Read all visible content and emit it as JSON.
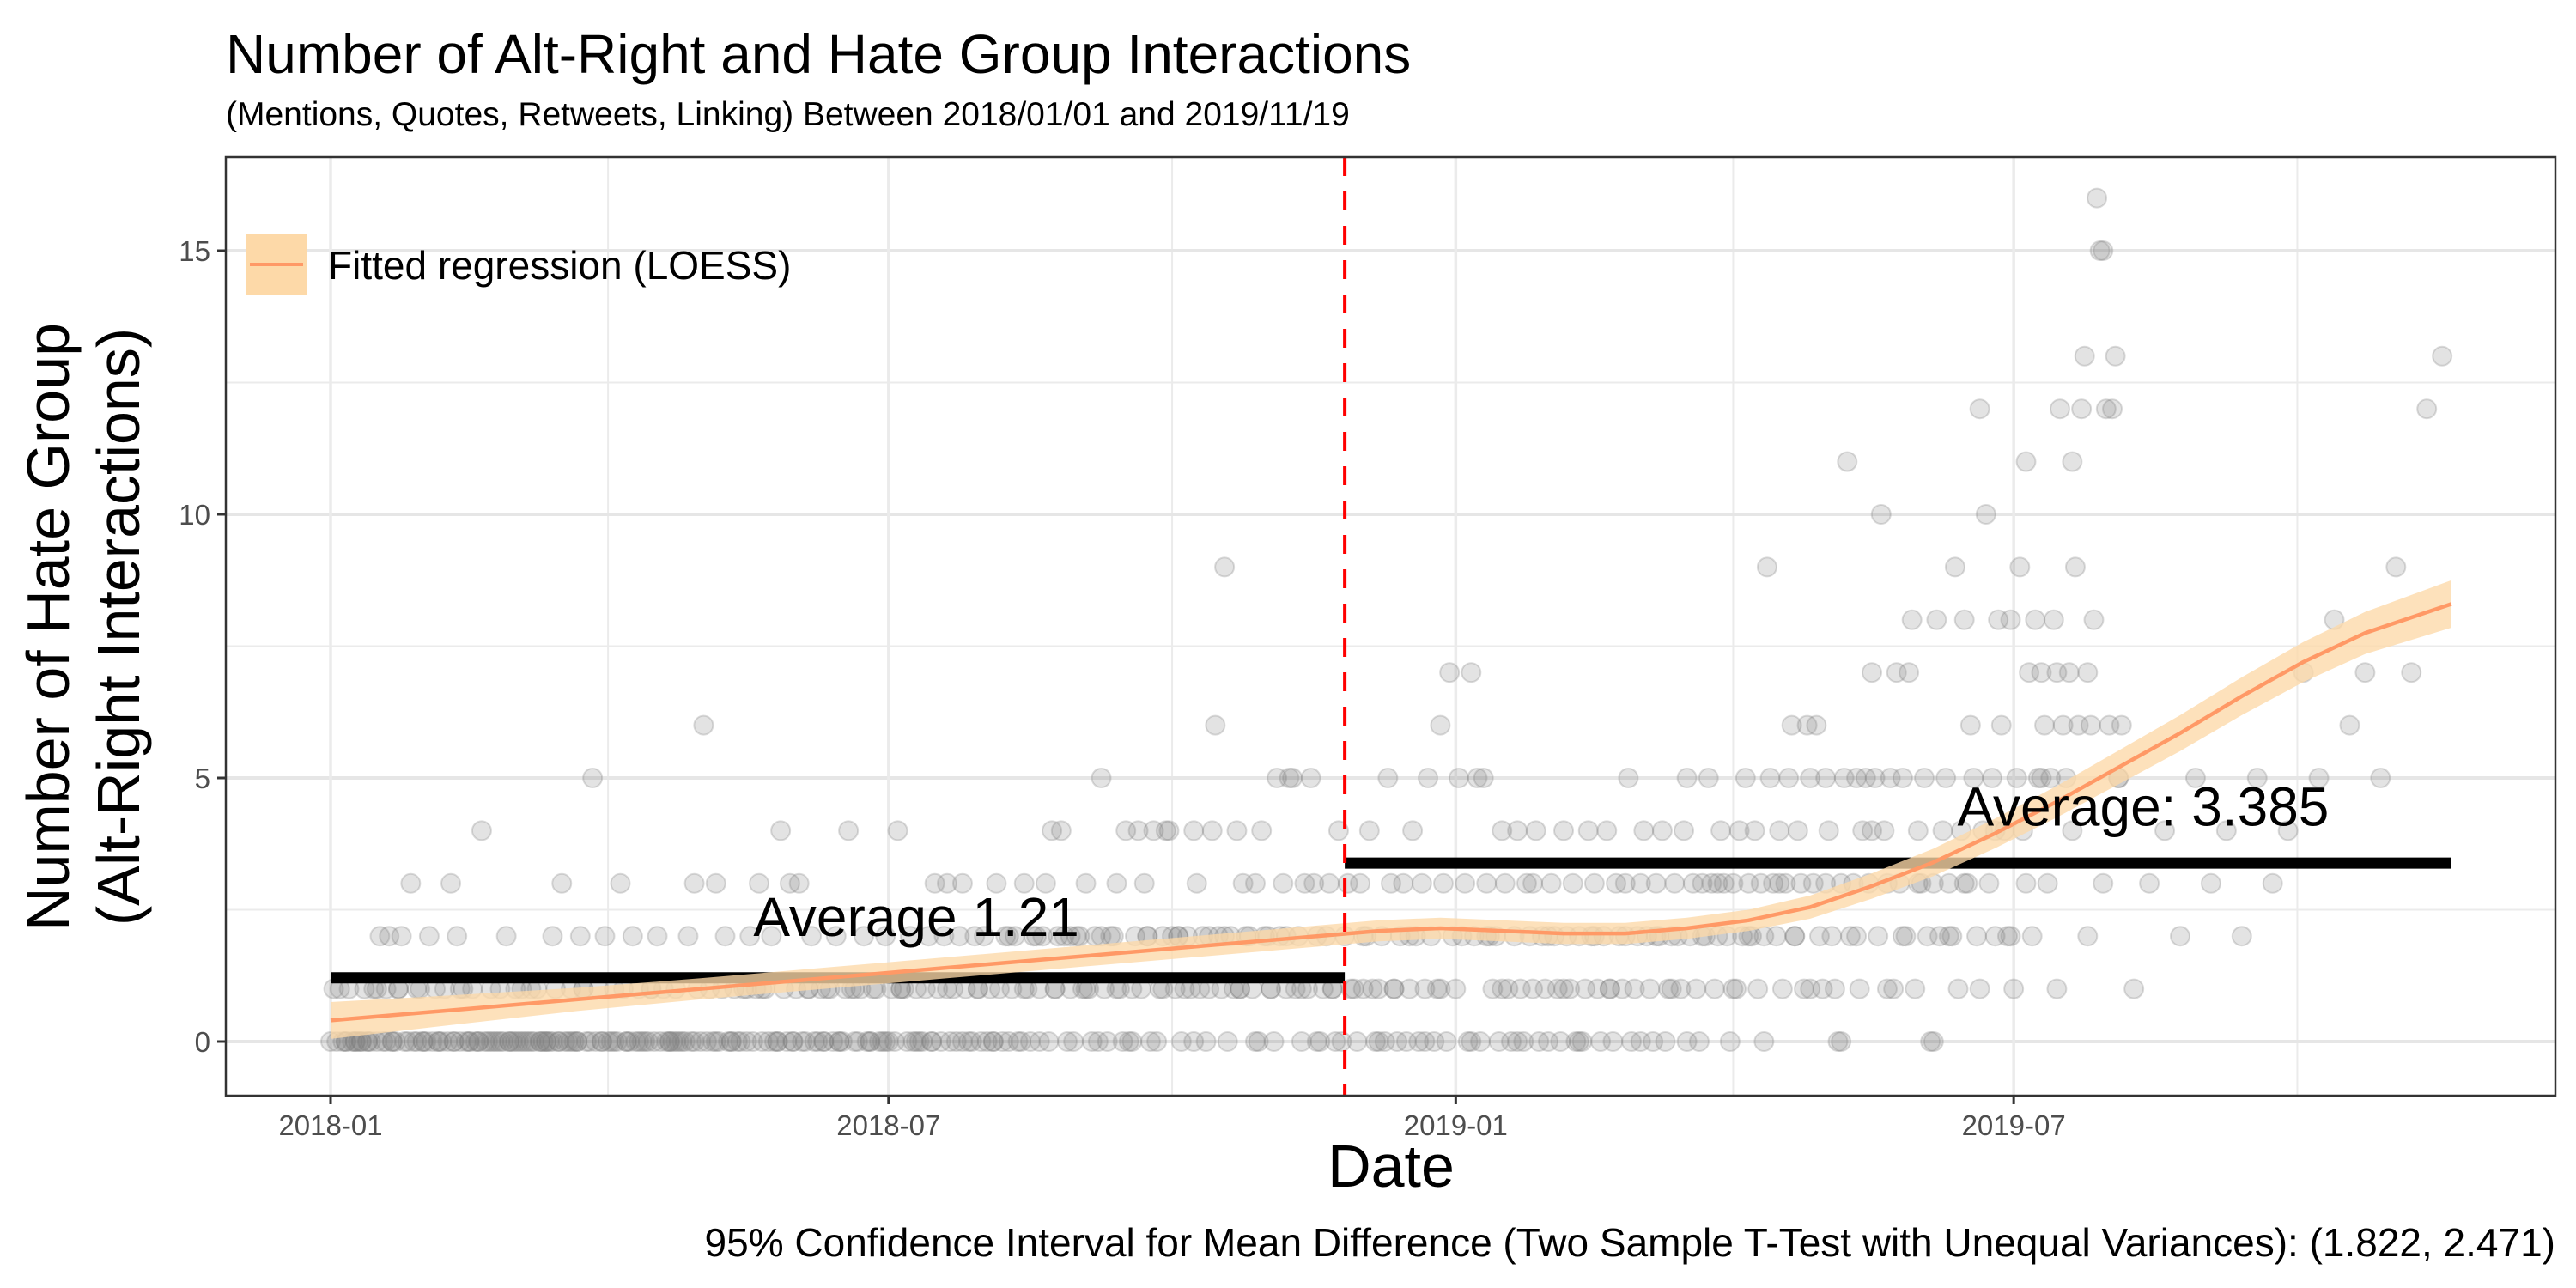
{
  "chart_data": {
    "type": "scatter",
    "title": "Number of Alt-Right and Hate Group Interactions",
    "subtitle": "(Mentions, Quotes, Retweets, Linking) Between 2018/01/01 and 2019/11/19",
    "xlabel": "Date",
    "ylabel_lines": [
      "Number of Hate Group",
      "(Alt-Right Interactions)"
    ],
    "caption": "95% Confidence Interval for Mean Difference (Two Sample T-Test with Unequal Variances): (1.822, 2.471)",
    "x_start_date": "2018-01-01",
    "x_end_date": "2019-11-19",
    "xlim_days": [
      -50,
      705
    ],
    "ylim": [
      -1.03,
      16.78
    ],
    "x_ticks": [
      {
        "label": "2018-01",
        "day": 0
      },
      {
        "label": "2018-07",
        "day": 181
      },
      {
        "label": "2019-01",
        "day": 365
      },
      {
        "label": "2019-07",
        "day": 546
      }
    ],
    "x_minor_days": [
      90,
      273,
      455,
      638
    ],
    "y_ticks": [
      0,
      5,
      10,
      15
    ],
    "y_minor": [
      2.5,
      7.5,
      12.5
    ],
    "grid": true,
    "cutoff": {
      "label": "2018-11-26",
      "day": 329,
      "color": "#ff0000",
      "style": "dashed"
    },
    "averages": [
      {
        "label": "Average 1.21",
        "value": 1.21,
        "from_day": 0,
        "to_day": 329,
        "label_day": 190,
        "label_y": 2.0
      },
      {
        "label": "Average: 3.385",
        "value": 3.385,
        "from_day": 329,
        "to_day": 688,
        "label_day": 588,
        "label_y": 4.1
      }
    ],
    "legend": {
      "label": "Fitted regression (LOESS)",
      "position": "top-left",
      "line_color": "#ff9966",
      "fill_color": "#fdd9a8"
    },
    "loess": {
      "days": [
        0,
        40,
        80,
        120,
        160,
        200,
        240,
        280,
        320,
        340,
        360,
        380,
        400,
        420,
        440,
        460,
        480,
        500,
        520,
        540,
        560,
        580,
        600,
        620,
        640,
        660,
        688
      ],
      "fit": [
        0.4,
        0.6,
        0.8,
        1.0,
        1.2,
        1.4,
        1.6,
        1.8,
        2.0,
        2.1,
        2.15,
        2.1,
        2.05,
        2.05,
        2.15,
        2.3,
        2.55,
        2.95,
        3.4,
        3.95,
        4.55,
        5.2,
        5.85,
        6.55,
        7.2,
        7.75,
        8.3
      ],
      "band": [
        0.35,
        0.28,
        0.22,
        0.2,
        0.2,
        0.2,
        0.2,
        0.2,
        0.2,
        0.2,
        0.2,
        0.2,
        0.2,
        0.2,
        0.2,
        0.2,
        0.22,
        0.24,
        0.26,
        0.28,
        0.3,
        0.32,
        0.34,
        0.36,
        0.38,
        0.4,
        0.45
      ]
    },
    "point_color": "#7f7f7f",
    "points_per_day": [
      0,
      1,
      0,
      1,
      0,
      0,
      1,
      0,
      0,
      0,
      0,
      1,
      0,
      0,
      1,
      0,
      2,
      0,
      1,
      2,
      0,
      0,
      1,
      2,
      0,
      0,
      3,
      0,
      1,
      1,
      0,
      0,
      2,
      0,
      1,
      0,
      0,
      1,
      0,
      3,
      0,
      2,
      0,
      1,
      0,
      0,
      1,
      0,
      0,
      4,
      0,
      0,
      1,
      0,
      0,
      0,
      0,
      2,
      0,
      0,
      1,
      0,
      0,
      0,
      0,
      1,
      0,
      1,
      0,
      0,
      0,
      0,
      2,
      1,
      0,
      3,
      0,
      0,
      1,
      0,
      0,
      2,
      1,
      0,
      0,
      5,
      0,
      1,
      0,
      2,
      0,
      0,
      1,
      0,
      3,
      1,
      0,
      0,
      2,
      0,
      1,
      0,
      0,
      0,
      1,
      0,
      2,
      0,
      1,
      0,
      0,
      0,
      1,
      0,
      0,
      0,
      2,
      0,
      3,
      1,
      0,
      6,
      0,
      1,
      0,
      3,
      0,
      1,
      2,
      0,
      0,
      1,
      0,
      0,
      1,
      0,
      2,
      0,
      1,
      3,
      0,
      1,
      0,
      2,
      0,
      0,
      4,
      1,
      0,
      3,
      0,
      1,
      3,
      0,
      0,
      1,
      2,
      0,
      0,
      1,
      0,
      1,
      1,
      0,
      2,
      0,
      0,
      1,
      4,
      1,
      0,
      0,
      1,
      2,
      0,
      0,
      1,
      1,
      0,
      0,
      2,
      0,
      1,
      0,
      4,
      1,
      1,
      0,
      2,
      0,
      1,
      0,
      0,
      1,
      2,
      0,
      3,
      1,
      0,
      2,
      3,
      0,
      1,
      0,
      2,
      3,
      1,
      0,
      0,
      2,
      1,
      0,
      2,
      0,
      1,
      0,
      3,
      1,
      0,
      2,
      0,
      1,
      2,
      0,
      0,
      3,
      1,
      0,
      2,
      2,
      1,
      2,
      3,
      0,
      4,
      1,
      2,
      4,
      2,
      0,
      1,
      0,
      2,
      2,
      1,
      3,
      1,
      0,
      2,
      0,
      5,
      1,
      0,
      2,
      2,
      3,
      1,
      0,
      4,
      0,
      1,
      2,
      4,
      1,
      3,
      2,
      0,
      4,
      0,
      1,
      2,
      4,
      4,
      2,
      1,
      2,
      0,
      1,
      2,
      1,
      4,
      3,
      1,
      2,
      0,
      2,
      4,
      6,
      2,
      1,
      9,
      0,
      2,
      1,
      4,
      1,
      3,
      2,
      2,
      1,
      3,
      0,
      4,
      2,
      2,
      1,
      0,
      5,
      2,
      3,
      1,
      5,
      5,
      1,
      2,
      0,
      3,
      1,
      5,
      3,
      2,
      0,
      1,
      2,
      3,
      1,
      0,
      4,
      0,
      2,
      3,
      1,
      1,
      0,
      3,
      2,
      2,
      4,
      1,
      0,
      1,
      2,
      0,
      5,
      3,
      1,
      0,
      2,
      3,
      0,
      1,
      4,
      2,
      0,
      3,
      1,
      5,
      2,
      0,
      1,
      6,
      3,
      0,
      7,
      2,
      1,
      5,
      2,
      3,
      0,
      7,
      2,
      5,
      0,
      5,
      3,
      2,
      1,
      2,
      0,
      4,
      3,
      1,
      0,
      2,
      4,
      1,
      0,
      3,
      2,
      1,
      4,
      0,
      2,
      1,
      0,
      3,
      2,
      1,
      0,
      4,
      2,
      1,
      3,
      0,
      2,
      0,
      1,
      4,
      2,
      3,
      1,
      0,
      2,
      4,
      1,
      0,
      3,
      2,
      1,
      2,
      5,
      0,
      1,
      2,
      3,
      4,
      2,
      1,
      0,
      3,
      2,
      4,
      0,
      1,
      2,
      3,
      2,
      1,
      4,
      5,
      2,
      3,
      1,
      0,
      3,
      2,
      5,
      3,
      1,
      2,
      4,
      3,
      2,
      0,
      3,
      1,
      4,
      2,
      5,
      3,
      2,
      4,
      1,
      3,
      2,
      9,
      5,
      3,
      2,
      4,
      1,
      3,
      5,
      6,
      2,
      4,
      3,
      1,
      6,
      5,
      3,
      6,
      2,
      1,
      5,
      4,
      2,
      1,
      0,
      3,
      5,
      11,
      2,
      3,
      5,
      1,
      4,
      5,
      3,
      7,
      5,
      2,
      10,
      4,
      3,
      5,
      1,
      7,
      3,
      5,
      2,
      7,
      8,
      1,
      4,
      3,
      5,
      2,
      0,
      3,
      8,
      2,
      4,
      5,
      3,
      2,
      9,
      1,
      4,
      8,
      3,
      6,
      5,
      2,
      12,
      4,
      10,
      3,
      5,
      2,
      8,
      6,
      4,
      2,
      8,
      1,
      5,
      9,
      4,
      11,
      7,
      2,
      8,
      5,
      7,
      6,
      3,
      5,
      8,
      7,
      12,
      6,
      5,
      7,
      11,
      9,
      6,
      12,
      13,
      7,
      6,
      8,
      16,
      15,
      15,
      12,
      6,
      12,
      13,
      5,
      6
    ],
    "extra_points": [
      [
        5,
        0
      ],
      [
        8,
        0
      ],
      [
        10,
        0
      ],
      [
        12,
        0
      ],
      [
        15,
        1
      ],
      [
        18,
        0
      ],
      [
        20,
        0
      ],
      [
        22,
        1
      ],
      [
        28,
        0
      ],
      [
        30,
        0
      ],
      [
        35,
        0
      ],
      [
        40,
        0
      ],
      [
        42,
        1
      ],
      [
        45,
        0
      ],
      [
        48,
        0
      ],
      [
        52,
        0
      ],
      [
        55,
        1
      ],
      [
        58,
        0
      ],
      [
        60,
        0
      ],
      [
        62,
        1
      ],
      [
        65,
        0
      ],
      [
        68,
        0
      ],
      [
        70,
        0
      ],
      [
        72,
        0
      ],
      [
        74,
        0
      ],
      [
        78,
        0
      ],
      [
        80,
        0
      ],
      [
        82,
        1
      ],
      [
        88,
        0
      ],
      [
        92,
        0
      ],
      [
        96,
        0
      ],
      [
        100,
        0
      ],
      [
        104,
        1
      ],
      [
        110,
        0
      ],
      [
        112,
        0
      ],
      [
        118,
        0
      ],
      [
        125,
        0
      ],
      [
        130,
        0
      ],
      [
        135,
        1
      ],
      [
        140,
        1
      ],
      [
        145,
        0
      ],
      [
        150,
        0
      ],
      [
        155,
        1
      ],
      [
        160,
        0
      ],
      [
        165,
        0
      ],
      [
        170,
        1
      ],
      [
        175,
        0
      ],
      [
        180,
        0
      ],
      [
        185,
        1
      ],
      [
        190,
        0
      ],
      [
        195,
        0
      ],
      [
        200,
        1
      ],
      [
        205,
        0
      ],
      [
        210,
        1
      ],
      [
        215,
        0
      ],
      [
        220,
        2
      ],
      [
        225,
        1
      ],
      [
        230,
        0
      ],
      [
        235,
        1
      ],
      [
        240,
        2
      ],
      [
        245,
        1
      ],
      [
        250,
        2
      ],
      [
        255,
        1
      ],
      [
        260,
        0
      ],
      [
        265,
        2
      ],
      [
        270,
        1
      ],
      [
        275,
        2
      ],
      [
        280,
        0
      ],
      [
        285,
        1
      ],
      [
        290,
        2
      ],
      [
        295,
        1
      ],
      [
        300,
        0
      ],
      [
        305,
        1
      ],
      [
        310,
        2
      ],
      [
        315,
        1
      ],
      [
        320,
        0
      ],
      [
        325,
        1
      ],
      [
        335,
        1
      ],
      [
        340,
        0
      ],
      [
        345,
        1
      ],
      [
        350,
        2
      ],
      [
        355,
        0
      ],
      [
        360,
        1
      ],
      [
        370,
        0
      ],
      [
        375,
        2
      ],
      [
        380,
        1
      ],
      [
        385,
        0
      ],
      [
        390,
        3
      ],
      [
        395,
        2
      ],
      [
        400,
        1
      ],
      [
        405,
        0
      ],
      [
        410,
        2
      ],
      [
        415,
        1
      ],
      [
        420,
        3
      ],
      [
        425,
        0
      ],
      [
        430,
        2
      ],
      [
        435,
        1
      ],
      [
        440,
        0
      ],
      [
        445,
        2
      ],
      [
        450,
        3
      ],
      [
        455,
        1
      ],
      [
        460,
        2
      ],
      [
        465,
        0
      ],
      [
        470,
        3
      ],
      [
        475,
        2
      ],
      [
        480,
        1
      ],
      [
        485,
        3
      ],
      [
        490,
        0
      ],
      [
        495,
        2
      ],
      [
        500,
        4
      ],
      [
        505,
        1
      ],
      [
        510,
        2
      ],
      [
        515,
        3
      ],
      [
        520,
        0
      ],
      [
        525,
        2
      ],
      [
        530,
        3
      ],
      [
        535,
        1
      ],
      [
        540,
        4
      ],
      [
        545,
        2
      ],
      [
        550,
        3
      ],
      [
        555,
        5
      ],
      [
        560,
        1
      ],
      [
        565,
        4
      ],
      [
        570,
        2
      ],
      [
        575,
        3
      ],
      [
        580,
        5
      ],
      [
        585,
        1
      ],
      [
        590,
        3
      ],
      [
        595,
        4
      ],
      [
        600,
        2
      ],
      [
        605,
        5
      ],
      [
        610,
        3
      ],
      [
        615,
        4
      ],
      [
        620,
        2
      ],
      [
        625,
        5
      ],
      [
        630,
        3
      ],
      [
        635,
        4
      ],
      [
        640,
        7
      ],
      [
        645,
        5
      ],
      [
        650,
        8
      ],
      [
        655,
        6
      ],
      [
        660,
        7
      ],
      [
        665,
        5
      ],
      [
        670,
        9
      ],
      [
        675,
        7
      ],
      [
        680,
        12
      ],
      [
        685,
        13
      ]
    ]
  }
}
